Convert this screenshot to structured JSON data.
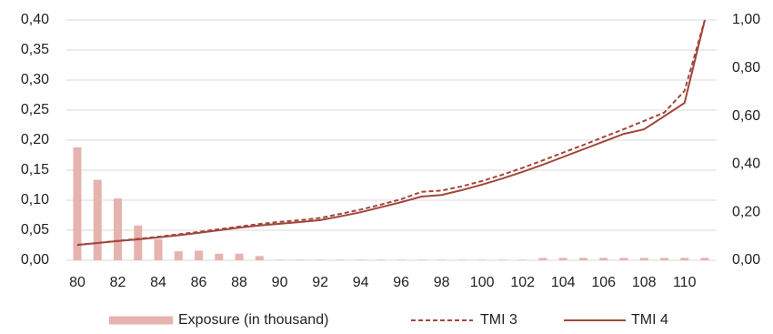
{
  "chart_data": {
    "type": "bar-line",
    "categories": [
      "80",
      null,
      "82",
      null,
      "84",
      null,
      "86",
      null,
      "88",
      null,
      "90",
      null,
      "92",
      null,
      "94",
      null,
      "96",
      null,
      "98",
      null,
      "100",
      null,
      "102",
      null,
      "104",
      null,
      "106",
      null,
      "108",
      null,
      "110",
      null
    ],
    "series": [
      {
        "name": "Exposure (in thousand)",
        "type": "bar",
        "axis": "y",
        "color": "#e6b3ae",
        "values": [
          0.188,
          0.134,
          0.103,
          0.058,
          0.035,
          0.015,
          0.016,
          0.011,
          0.011,
          0.007,
          0.001,
          0.001,
          0.001,
          0.001,
          0.001,
          0.001,
          0.001,
          0.001,
          0.001,
          0.001,
          0.001,
          0.001,
          0.001,
          0.004,
          0.004,
          0.004,
          0.004,
          0.004,
          0.004,
          0.004,
          0.004,
          0.004
        ]
      },
      {
        "name": "TMI 3",
        "type": "line",
        "axis": "y2",
        "color": "#a0473d",
        "dashed": true,
        "values": [
          0.064,
          0.072,
          0.081,
          0.089,
          0.098,
          0.108,
          0.118,
          0.129,
          0.14,
          0.151,
          0.16,
          0.167,
          0.176,
          0.193,
          0.211,
          0.232,
          0.254,
          0.285,
          0.29,
          0.308,
          0.33,
          0.356,
          0.385,
          0.416,
          0.448,
          0.48,
          0.513,
          0.546,
          0.58,
          0.615,
          0.705,
          1.0
        ]
      },
      {
        "name": "TMI 4",
        "type": "line",
        "axis": "y2",
        "color": "#a0473d",
        "dashed": false,
        "values": [
          0.064,
          0.072,
          0.08,
          0.087,
          0.095,
          0.104,
          0.114,
          0.125,
          0.136,
          0.145,
          0.152,
          0.159,
          0.167,
          0.183,
          0.2,
          0.221,
          0.242,
          0.265,
          0.272,
          0.292,
          0.315,
          0.34,
          0.368,
          0.398,
          0.43,
          0.462,
          0.494,
          0.526,
          0.545,
          0.6,
          0.655,
          1.0
        ]
      }
    ],
    "ylim": [
      0,
      0.4
    ],
    "yticks": [
      {
        "value": 0,
        "label": "0,00"
      },
      {
        "value": 0.05,
        "label": "0,05"
      },
      {
        "value": 0.1,
        "label": "0,10"
      },
      {
        "value": 0.15,
        "label": "0,15"
      },
      {
        "value": 0.2,
        "label": "0,20"
      },
      {
        "value": 0.25,
        "label": "0,25"
      },
      {
        "value": 0.3,
        "label": "0,30"
      },
      {
        "value": 0.35,
        "label": "0,35"
      },
      {
        "value": 0.4,
        "label": "0,40"
      }
    ],
    "y2lim": [
      0,
      1.0
    ],
    "y2ticks": [
      {
        "value": 0,
        "label": "0,00"
      },
      {
        "value": 0.2,
        "label": "0,20"
      },
      {
        "value": 0.4,
        "label": "0,40"
      },
      {
        "value": 0.6,
        "label": "0,60"
      },
      {
        "value": 0.8,
        "label": "0,80"
      },
      {
        "value": 1.0,
        "label": "1,00"
      }
    ],
    "grid": true
  }
}
